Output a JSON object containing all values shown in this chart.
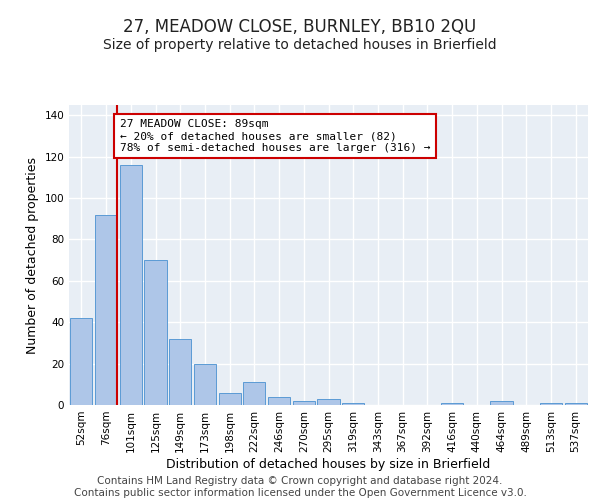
{
  "title": "27, MEADOW CLOSE, BURNLEY, BB10 2QU",
  "subtitle": "Size of property relative to detached houses in Brierfield",
  "xlabel": "Distribution of detached houses by size in Brierfield",
  "ylabel": "Number of detached properties",
  "categories": [
    "52sqm",
    "76sqm",
    "101sqm",
    "125sqm",
    "149sqm",
    "173sqm",
    "198sqm",
    "222sqm",
    "246sqm",
    "270sqm",
    "295sqm",
    "319sqm",
    "343sqm",
    "367sqm",
    "392sqm",
    "416sqm",
    "440sqm",
    "464sqm",
    "489sqm",
    "513sqm",
    "537sqm"
  ],
  "values": [
    42,
    92,
    116,
    70,
    32,
    20,
    6,
    11,
    4,
    2,
    3,
    1,
    0,
    0,
    0,
    1,
    0,
    2,
    0,
    1,
    1
  ],
  "bar_color": "#aec6e8",
  "bar_edge_color": "#5b9bd5",
  "background_color": "#e8eef5",
  "grid_color": "#ffffff",
  "annotation_box_text": "27 MEADOW CLOSE: 89sqm\n← 20% of detached houses are smaller (82)\n78% of semi-detached houses are larger (316) →",
  "annotation_box_color": "#ffffff",
  "annotation_box_edge_color": "#cc0000",
  "vline_color": "#cc0000",
  "vline_x": 1.45,
  "ylim": [
    0,
    145
  ],
  "yticks": [
    0,
    20,
    40,
    60,
    80,
    100,
    120,
    140
  ],
  "footer_line1": "Contains HM Land Registry data © Crown copyright and database right 2024.",
  "footer_line2": "Contains public sector information licensed under the Open Government Licence v3.0.",
  "title_fontsize": 12,
  "subtitle_fontsize": 10,
  "tick_fontsize": 7.5,
  "ylabel_fontsize": 9,
  "xlabel_fontsize": 9,
  "footer_fontsize": 7.5
}
